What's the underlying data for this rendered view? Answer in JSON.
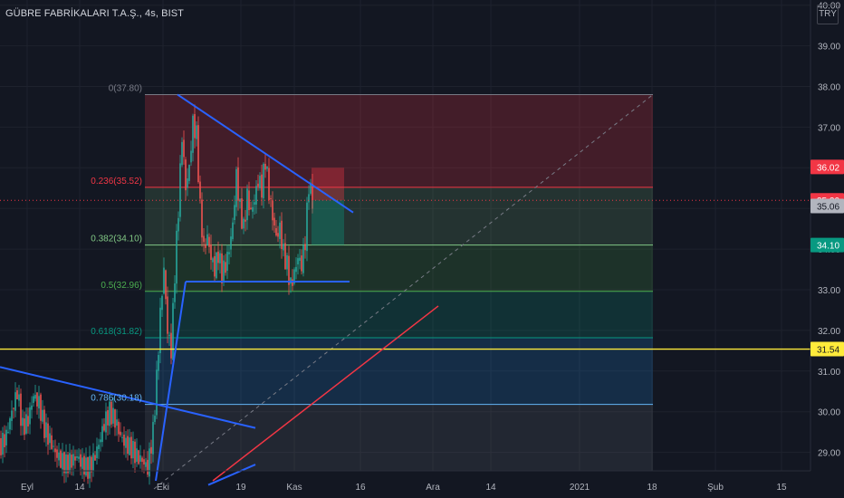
{
  "header": {
    "symbol_title": "GÜBRE FABRİKALARI T.A.Ş., 4s, BIST",
    "currency": "TRY"
  },
  "chart_data": {
    "type": "candlestick",
    "title": "GÜBRE FABRİKALARI T.A.Ş., 4s, BIST",
    "ylim": [
      28.3,
      40.0
    ],
    "y_ticks": [
      "29.00",
      "30.00",
      "31.00",
      "32.00",
      "33.00",
      "34.00",
      "35.00",
      "36.00",
      "37.00",
      "38.00",
      "39.00",
      "40.00"
    ],
    "x_ticks": [
      "Eyl",
      "14",
      "Eki",
      "19",
      "Kas",
      "16",
      "Ara",
      "14",
      "2021",
      "18",
      "Şub",
      "15"
    ],
    "price_labels": [
      {
        "text": "36.02",
        "value": 36.02,
        "color": "#f23645"
      },
      {
        "text": "35.20",
        "value": 35.2,
        "color": "#f23645"
      },
      {
        "text": "35.06",
        "value": 35.06,
        "color": "#b2b5be"
      },
      {
        "text": "34.10",
        "value": 34.1,
        "color": "#089981"
      },
      {
        "text": "31.54",
        "value": 31.54,
        "color": "#ffeb3b"
      }
    ],
    "fib_levels": [
      {
        "label": "0(37.80)",
        "value": 37.8,
        "color": "#787b86"
      },
      {
        "label": "0.236(35.52)",
        "value": 35.52,
        "color": "#f23645"
      },
      {
        "label": "0.382(34.10)",
        "value": 34.1,
        "color": "#81c784"
      },
      {
        "label": "0.5(32.96)",
        "value": 32.96,
        "color": "#4caf50"
      },
      {
        "label": "0.618(31.82)",
        "value": 31.82,
        "color": "#089981"
      },
      {
        "label": "0.786(30.18)",
        "value": 30.18,
        "color": "#64b5f6"
      }
    ],
    "horizontal_line": {
      "value": 31.54,
      "color": "#ffeb3b"
    },
    "current_price": 35.2,
    "colors": {
      "up": "#26a69a",
      "down": "#ef5350",
      "trend": "#2962ff",
      "red_trend": "#f23645"
    }
  }
}
